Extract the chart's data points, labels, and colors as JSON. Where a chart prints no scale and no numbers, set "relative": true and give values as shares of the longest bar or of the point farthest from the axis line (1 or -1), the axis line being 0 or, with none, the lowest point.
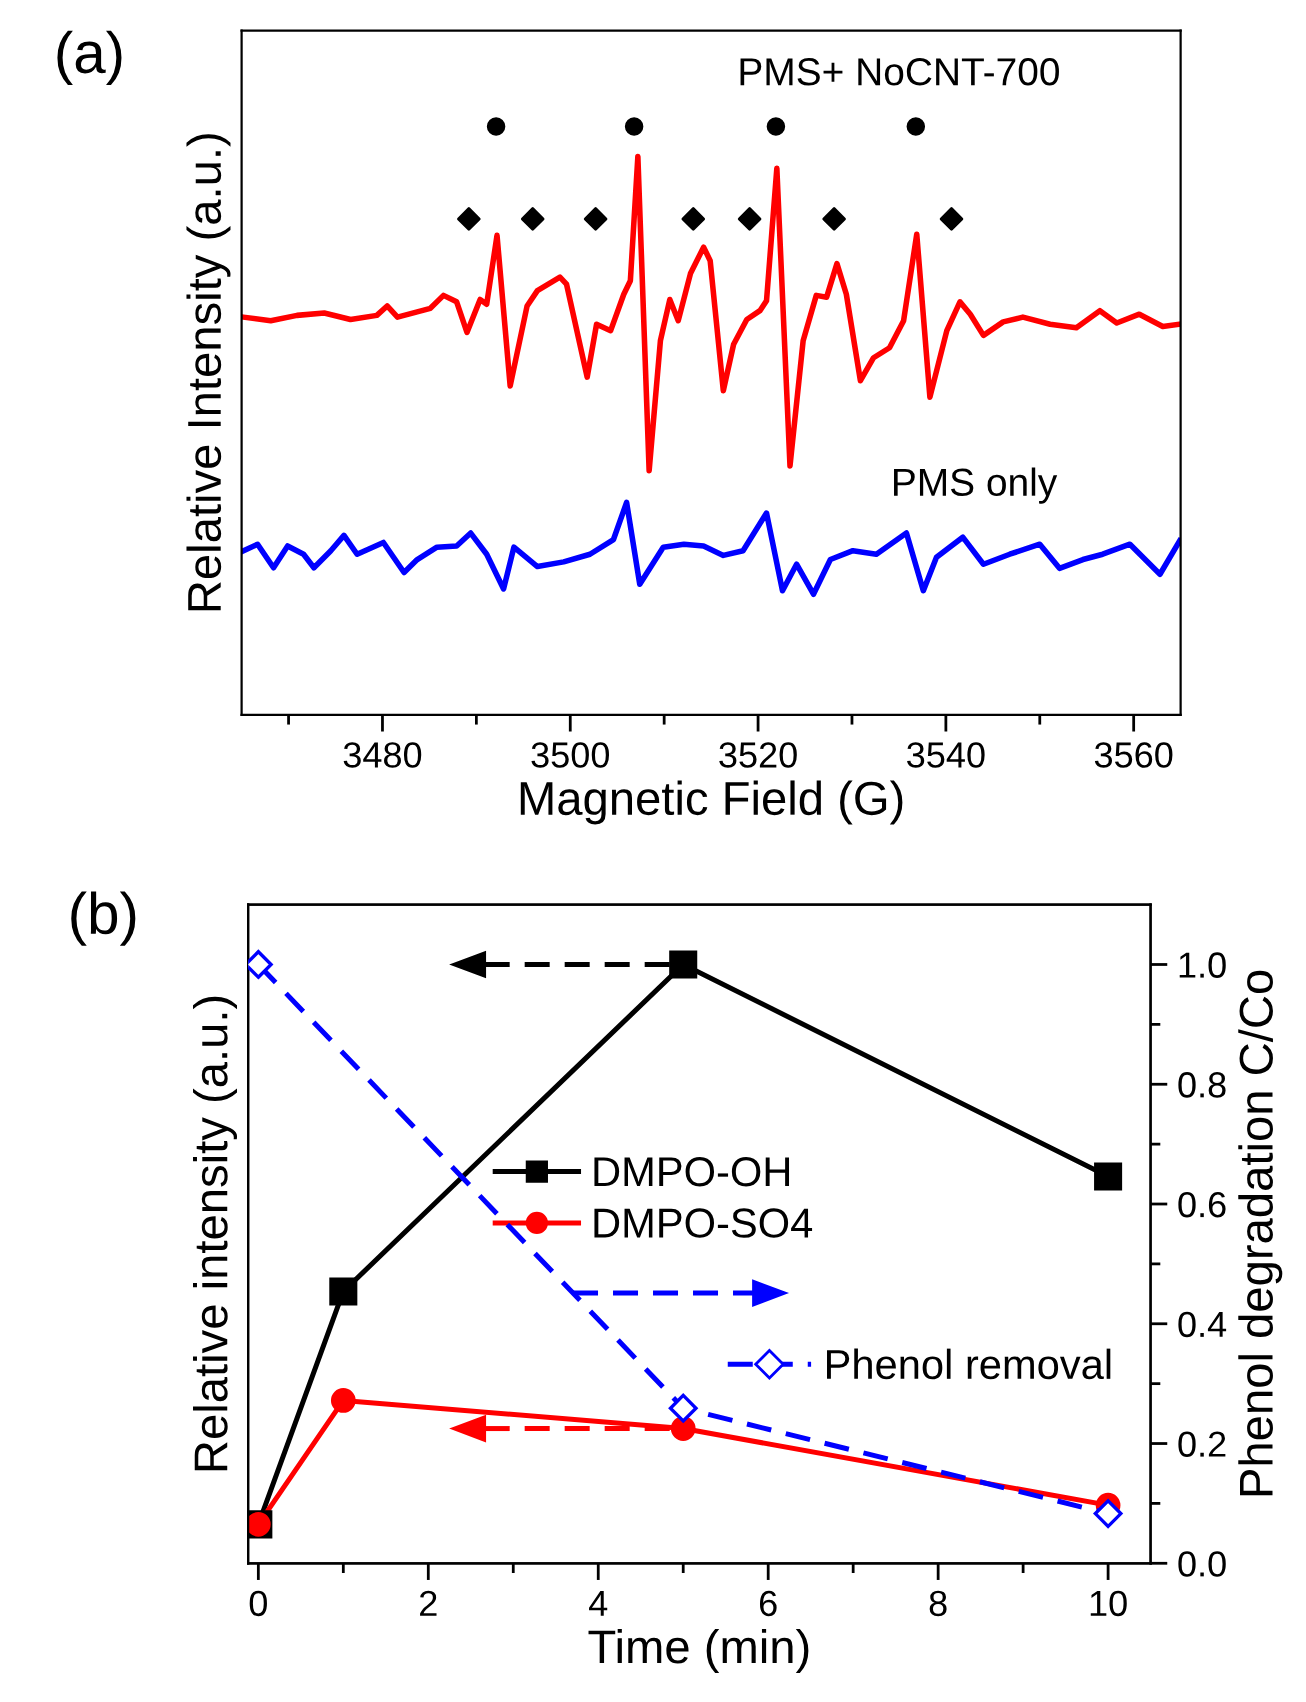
{
  "chart_data": [
    {
      "type": "line",
      "title": "(a)",
      "xlabel": "Magnetic Field (G)",
      "ylabel": "Relative Intensity (a.u.)",
      "relative": true,
      "grid": false,
      "legend": false,
      "xlim": [
        3465,
        3565
      ],
      "xticks": [
        {
          "value": 3470,
          "label": null
        },
        3480,
        {
          "value": 3490,
          "label": null
        },
        3500,
        {
          "value": 3510,
          "label": null
        },
        3520,
        {
          "value": 3530,
          "label": null
        },
        3540,
        {
          "value": 3550,
          "label": null
        },
        3560
      ],
      "series": [
        {
          "name": "PMS+ NoCNT-700",
          "color": "#ff0000",
          "marker": "none",
          "x": [
            3465.2,
            3468.1,
            3470.9,
            3473.8,
            3476.6,
            3479.4,
            3480.5,
            3481.6,
            3485.1,
            3486.5,
            3487.9,
            3489.0,
            3490.4,
            3491.1,
            3492.2,
            3493.6,
            3495.4,
            3496.5,
            3498.9,
            3499.6,
            3501.8,
            3502.8,
            3504.3,
            3505.7,
            3506.4,
            3507.2,
            3508.4,
            3509.6,
            3510.6,
            3511.5,
            3512.8,
            3514.2,
            3514.9,
            3516.3,
            3517.4,
            3518.8,
            3520.2,
            3520.9,
            3522.0,
            3523.4,
            3524.8,
            3526.2,
            3527.3,
            3528.4,
            3529.4,
            3530.9,
            3532.3,
            3534.0,
            3535.5,
            3536.9,
            3538.3,
            3540.1,
            3541.5,
            3542.6,
            3544.0,
            3546.1,
            3548.2,
            3551.1,
            3553.9,
            3556.4,
            3558.2,
            3560.6,
            3563.1,
            3564.9
          ],
          "values": [
            0.676,
            0.67,
            0.679,
            0.683,
            0.672,
            0.679,
            0.695,
            0.676,
            0.691,
            0.713,
            0.702,
            0.65,
            0.706,
            0.698,
            0.815,
            0.559,
            0.695,
            0.721,
            0.744,
            0.732,
            0.574,
            0.664,
            0.653,
            0.715,
            0.738,
            0.949,
            0.415,
            0.636,
            0.706,
            0.67,
            0.75,
            0.795,
            0.772,
            0.551,
            0.63,
            0.672,
            0.687,
            0.704,
            0.929,
            0.423,
            0.636,
            0.713,
            0.71,
            0.767,
            0.715,
            0.568,
            0.607,
            0.624,
            0.67,
            0.817,
            0.54,
            0.653,
            0.702,
            0.681,
            0.645,
            0.668,
            0.676,
            0.664,
            0.658,
            0.687,
            0.666,
            0.681,
            0.66,
            0.664
          ]
        },
        {
          "name": "PMS only",
          "color": "#0000ff",
          "marker": "none",
          "x": [
            3465.2,
            3466.7,
            3468.4,
            3469.9,
            3471.6,
            3472.7,
            3474.5,
            3475.9,
            3477.3,
            3480.1,
            3482.3,
            3483.7,
            3485.8,
            3487.9,
            3489.4,
            3491.1,
            3492.9,
            3494.0,
            3496.5,
            3499.3,
            3502.1,
            3504.6,
            3506.0,
            3507.4,
            3509.9,
            3512.1,
            3514.2,
            3516.3,
            3518.4,
            3520.9,
            3522.6,
            3524.1,
            3525.9,
            3527.7,
            3530.1,
            3532.6,
            3535.8,
            3537.6,
            3539.0,
            3541.8,
            3544.0,
            3546.8,
            3550.0,
            3552.1,
            3554.6,
            3556.7,
            3559.6,
            3562.8,
            3564.9
          ],
          "values": [
            0.279,
            0.29,
            0.25,
            0.287,
            0.273,
            0.25,
            0.279,
            0.305,
            0.273,
            0.293,
            0.242,
            0.264,
            0.285,
            0.287,
            0.309,
            0.273,
            0.214,
            0.285,
            0.252,
            0.26,
            0.273,
            0.298,
            0.361,
            0.222,
            0.285,
            0.29,
            0.287,
            0.271,
            0.279,
            0.343,
            0.211,
            0.256,
            0.205,
            0.264,
            0.279,
            0.273,
            0.309,
            0.211,
            0.268,
            0.302,
            0.256,
            0.273,
            0.29,
            0.249,
            0.264,
            0.273,
            0.29,
            0.239,
            0.296
          ]
        },
        {
          "type": "scatter",
          "color": "#000000",
          "marker": "circle",
          "x": [
            3492.1,
            3506.8,
            3521.9,
            3536.8
          ],
          "values": [
            1.0,
            1.0,
            1.0,
            1.0
          ]
        },
        {
          "type": "scatter",
          "color": "#000000",
          "marker": "diamond",
          "x": [
            3489.2,
            3496.0,
            3502.7,
            3513.1,
            3519.1,
            3528.1,
            3540.6
          ],
          "values": [
            0.843,
            0.843,
            0.843,
            0.843,
            0.843,
            0.843,
            0.843
          ]
        }
      ]
    },
    {
      "type": "line",
      "title": "(b)",
      "xlabel": "Time (min)",
      "ylabel": "Relative intensity (a.u.)",
      "y2label": "Phenol degradation C/Co",
      "relative": true,
      "grid": false,
      "legend": "center",
      "xlim": [
        -0.12,
        10.5
      ],
      "xticks": [
        0,
        {
          "value": 1,
          "label": null
        },
        2,
        {
          "value": 3,
          "label": null
        },
        4,
        {
          "value": 5,
          "label": null
        },
        6,
        {
          "value": 7,
          "label": null
        },
        8,
        {
          "value": 9,
          "label": null
        },
        10
      ],
      "y2lim": [
        0,
        1.1
      ],
      "y2ticks": [
        {
          "value": 0,
          "label": "0.0"
        },
        {
          "value": 0.1,
          "label": null
        },
        0.2,
        {
          "value": 0.3,
          "label": null
        },
        0.4,
        {
          "value": 0.5,
          "label": null
        },
        0.6,
        {
          "value": 0.7,
          "label": null
        },
        0.8,
        {
          "value": 0.9,
          "label": null
        },
        {
          "value": 1.0,
          "label": "1.0"
        }
      ],
      "x": [
        0,
        1,
        5,
        10
      ],
      "series": [
        {
          "name": "DMPO-OH",
          "color": "#000000",
          "marker": "square",
          "line_style": "solid",
          "values": [
            0.065,
            0.454,
            1.0,
            0.646
          ]
        },
        {
          "name": "DMPO-SO4",
          "color": "#ff0000",
          "marker": "circle",
          "line_style": "solid",
          "values": [
            0.065,
            0.272,
            0.225,
            0.097
          ]
        },
        {
          "name": "Phenol removal",
          "color": "#0000ff",
          "marker": "diamond",
          "line_style": "dashed",
          "axis": "y2",
          "x": [
            0,
            5,
            10
          ],
          "values": [
            1.0,
            0.259,
            0.083
          ]
        }
      ]
    }
  ]
}
